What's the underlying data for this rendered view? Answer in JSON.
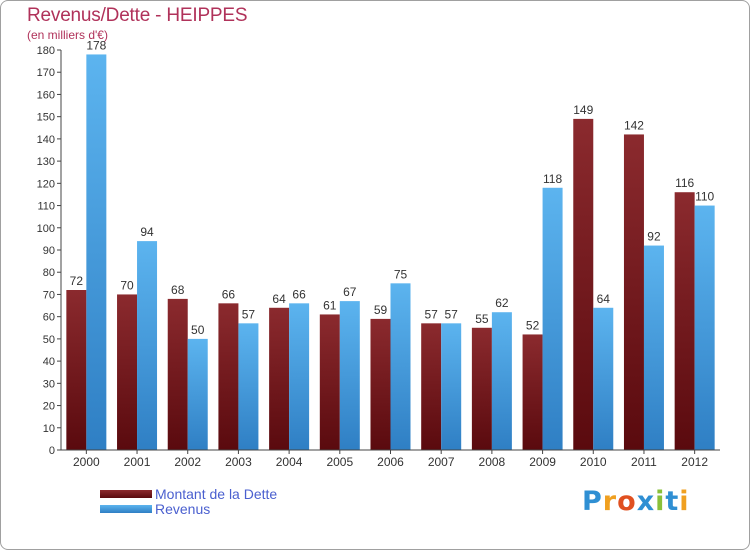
{
  "title": "Revenus/Dette - HEIPPES",
  "subtitle": "(en milliers d'€)",
  "brand": {
    "text": "Proxiti",
    "letters": [
      {
        "ch": "P",
        "color": "#2f8fd3"
      },
      {
        "ch": "r",
        "color": "#f0a020"
      },
      {
        "ch": "o",
        "color": "#e05020"
      },
      {
        "ch": "x",
        "color": "#2f8fd3"
      },
      {
        "ch": "i",
        "color": "#8ac03a"
      },
      {
        "ch": "t",
        "color": "#2f8fd3"
      },
      {
        "ch": "i",
        "color": "#f0a020"
      }
    ]
  },
  "chart_data": {
    "type": "bar",
    "title": "Revenus/Dette - HEIPPES",
    "ylabel": "(en milliers d'€)",
    "ylim": [
      0,
      180
    ],
    "ytick_step": 10,
    "grid": false,
    "legend_position": "bottom-left",
    "categories": [
      "2000",
      "2001",
      "2002",
      "2003",
      "2004",
      "2005",
      "2006",
      "2007",
      "2008",
      "2009",
      "2010",
      "2011",
      "2012"
    ],
    "series": [
      {
        "name": "Montant de la Dette",
        "color_top": "#8b2a2e",
        "color_bottom": "#5a0a0e",
        "values": [
          72,
          70,
          68,
          66,
          64,
          61,
          59,
          57,
          55,
          52,
          149,
          142,
          116
        ]
      },
      {
        "name": "Revenus",
        "color_top": "#5cb4ef",
        "color_bottom": "#2f7fc4",
        "values": [
          178,
          94,
          50,
          57,
          66,
          67,
          75,
          57,
          62,
          118,
          64,
          92,
          110
        ]
      }
    ]
  }
}
